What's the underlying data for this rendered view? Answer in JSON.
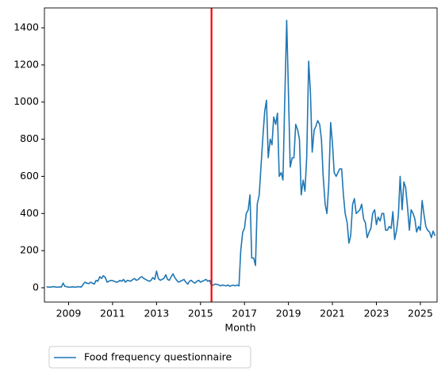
{
  "chart_data": {
    "type": "line",
    "xlabel": "Month",
    "x": [
      2008.0,
      2008.08,
      2008.17,
      2008.25,
      2008.33,
      2008.42,
      2008.5,
      2008.58,
      2008.67,
      2008.75,
      2008.83,
      2008.92,
      2009.0,
      2009.08,
      2009.17,
      2009.25,
      2009.33,
      2009.42,
      2009.5,
      2009.58,
      2009.67,
      2009.75,
      2009.83,
      2009.92,
      2010.0,
      2010.08,
      2010.17,
      2010.25,
      2010.33,
      2010.42,
      2010.5,
      2010.58,
      2010.67,
      2010.75,
      2010.83,
      2010.92,
      2011.0,
      2011.08,
      2011.17,
      2011.25,
      2011.33,
      2011.42,
      2011.5,
      2011.58,
      2011.67,
      2011.75,
      2011.83,
      2011.92,
      2012.0,
      2012.08,
      2012.17,
      2012.25,
      2012.33,
      2012.42,
      2012.5,
      2012.58,
      2012.67,
      2012.75,
      2012.83,
      2012.92,
      2013.0,
      2013.08,
      2013.17,
      2013.25,
      2013.33,
      2013.42,
      2013.5,
      2013.58,
      2013.67,
      2013.75,
      2013.83,
      2013.92,
      2014.0,
      2014.08,
      2014.17,
      2014.25,
      2014.33,
      2014.42,
      2014.5,
      2014.58,
      2014.67,
      2014.75,
      2014.83,
      2014.92,
      2015.0,
      2015.08,
      2015.17,
      2015.25,
      2015.33,
      2015.42,
      2015.5,
      2015.58,
      2015.67,
      2015.75,
      2015.83,
      2015.92,
      2016.0,
      2016.08,
      2016.17,
      2016.25,
      2016.33,
      2016.42,
      2016.5,
      2016.58,
      2016.67,
      2016.75,
      2016.83,
      2016.92,
      2017.0,
      2017.08,
      2017.17,
      2017.25,
      2017.33,
      2017.42,
      2017.5,
      2017.58,
      2017.67,
      2017.75,
      2017.83,
      2017.92,
      2018.0,
      2018.08,
      2018.17,
      2018.25,
      2018.33,
      2018.42,
      2018.5,
      2018.58,
      2018.67,
      2018.75,
      2018.83,
      2018.92,
      2019.0,
      2019.08,
      2019.17,
      2019.25,
      2019.33,
      2019.42,
      2019.5,
      2019.58,
      2019.67,
      2019.75,
      2019.83,
      2019.92,
      2020.0,
      2020.08,
      2020.17,
      2020.25,
      2020.33,
      2020.42,
      2020.5,
      2020.58,
      2020.67,
      2020.75,
      2020.83,
      2020.92,
      2021.0,
      2021.08,
      2021.17,
      2021.25,
      2021.33,
      2021.42,
      2021.5,
      2021.58,
      2021.67,
      2021.75,
      2021.83,
      2021.92,
      2022.0,
      2022.08,
      2022.17,
      2022.25,
      2022.33,
      2022.42,
      2022.5,
      2022.58,
      2022.67,
      2022.75,
      2022.83,
      2022.92,
      2023.0,
      2023.08,
      2023.17,
      2023.25,
      2023.33,
      2023.42,
      2023.5,
      2023.58,
      2023.67,
      2023.75,
      2023.83,
      2023.92,
      2024.0,
      2024.08,
      2024.17,
      2024.25,
      2024.33,
      2024.42,
      2024.5,
      2024.58,
      2024.67,
      2024.75,
      2024.83,
      2024.92,
      2025.0,
      2025.08,
      2025.17,
      2025.25,
      2025.33,
      2025.42,
      2025.5,
      2025.58,
      2025.67
    ],
    "series": [
      {
        "name": "Food frequency questionnaire",
        "color": "#1f77b4",
        "values": [
          5,
          4,
          3,
          5,
          6,
          4,
          3,
          5,
          4,
          25,
          8,
          5,
          4,
          3,
          5,
          4,
          3,
          6,
          5,
          4,
          20,
          30,
          25,
          22,
          30,
          25,
          20,
          40,
          35,
          60,
          50,
          65,
          55,
          30,
          35,
          40,
          38,
          35,
          30,
          32,
          40,
          35,
          45,
          30,
          40,
          38,
          35,
          45,
          50,
          40,
          45,
          55,
          60,
          50,
          45,
          40,
          35,
          40,
          55,
          45,
          90,
          50,
          40,
          45,
          50,
          70,
          45,
          40,
          60,
          75,
          55,
          40,
          30,
          35,
          40,
          45,
          30,
          20,
          35,
          40,
          30,
          25,
          35,
          40,
          30,
          35,
          40,
          45,
          35,
          40,
          10,
          15,
          20,
          18,
          15,
          10,
          15,
          12,
          10,
          15,
          8,
          12,
          14,
          10,
          15,
          10,
          200,
          300,
          320,
          400,
          420,
          500,
          160,
          160,
          120,
          450,
          500,
          650,
          800,
          950,
          1010,
          700,
          800,
          770,
          920,
          880,
          940,
          600,
          620,
          580,
          1000,
          1440,
          1050,
          650,
          700,
          700,
          880,
          850,
          800,
          500,
          580,
          520,
          700,
          1220,
          1050,
          730,
          850,
          870,
          900,
          880,
          800,
          600,
          450,
          400,
          550,
          890,
          780,
          620,
          600,
          620,
          640,
          640,
          500,
          400,
          350,
          240,
          280,
          450,
          480,
          400,
          410,
          420,
          450,
          370,
          350,
          270,
          300,
          320,
          400,
          420,
          340,
          380,
          360,
          400,
          400,
          310,
          310,
          330,
          320,
          410,
          260,
          310,
          390,
          600,
          420,
          570,
          540,
          430,
          310,
          420,
          400,
          370,
          300,
          330,
          310,
          470,
          390,
          330,
          310,
          300,
          270,
          305,
          280
        ]
      }
    ],
    "vline": {
      "value": 2015.5,
      "color": "#ff0000"
    },
    "xlim": [
      2007.9,
      2025.76
    ],
    "ylim": [
      -77,
      1507
    ],
    "xticks": [
      2009,
      2011,
      2013,
      2015,
      2017,
      2019,
      2021,
      2023,
      2025
    ],
    "yticks": [
      0,
      200,
      400,
      600,
      800,
      1000,
      1200,
      1400
    ],
    "legend": "lower left outside"
  }
}
